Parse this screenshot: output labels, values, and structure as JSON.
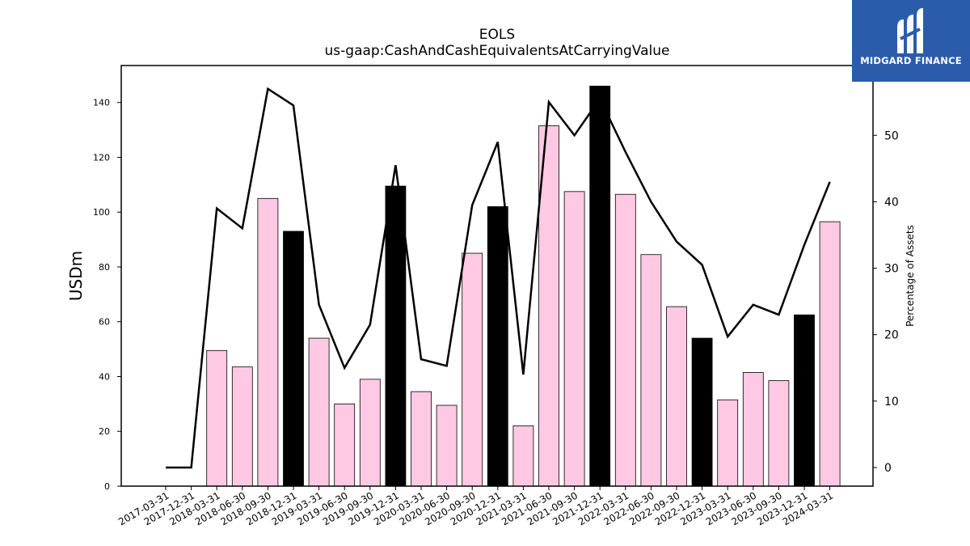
{
  "chart_data": {
    "type": "bar",
    "title": "EOLS",
    "subtitle": "us-gaap:CashAndCashEquivalentsAtCarryingValue",
    "ylabel": "USDm",
    "y2label": "Percentage of Assets",
    "ylim": [
      0,
      153.5
    ],
    "y2lim": [
      -2.8,
      60.5
    ],
    "yticks": [
      0,
      20,
      40,
      60,
      80,
      100,
      120,
      140
    ],
    "y2ticks": [
      0,
      10,
      20,
      30,
      40,
      50
    ],
    "categories": [
      "2017-03-31",
      "2017-12-31",
      "2018-03-31",
      "2018-06-30",
      "2018-09-30",
      "2018-12-31",
      "2019-03-31",
      "2019-06-30",
      "2019-09-30",
      "2019-12-31",
      "2020-03-31",
      "2020-06-30",
      "2020-09-30",
      "2020-12-31",
      "2021-03-31",
      "2021-06-30",
      "2021-09-30",
      "2021-12-31",
      "2022-03-31",
      "2022-06-30",
      "2022-09-30",
      "2022-12-31",
      "2023-03-31",
      "2023-06-30",
      "2023-09-30",
      "2023-12-31",
      "2024-03-31"
    ],
    "series": [
      {
        "type": "bar",
        "values": [
          0,
          0,
          49.5,
          43.5,
          105,
          93,
          54,
          30,
          39,
          109.5,
          34.5,
          29.5,
          85,
          102,
          22,
          131.5,
          107.5,
          146,
          106.5,
          84.5,
          65.5,
          54,
          31.5,
          41.5,
          38.5,
          62.5,
          96.5
        ],
        "colors": [
          "#ffc9e3",
          "#ffc9e3",
          "#ffc9e3",
          "#ffc9e3",
          "#ffc9e3",
          "#000000",
          "#ffc9e3",
          "#ffc9e3",
          "#ffc9e3",
          "#000000",
          "#ffc9e3",
          "#ffc9e3",
          "#ffc9e3",
          "#000000",
          "#ffc9e3",
          "#ffc9e3",
          "#ffc9e3",
          "#000000",
          "#ffc9e3",
          "#ffc9e3",
          "#ffc9e3",
          "#000000",
          "#ffc9e3",
          "#ffc9e3",
          "#ffc9e3",
          "#000000",
          "#ffc9e3"
        ]
      },
      {
        "type": "line",
        "axis": "right",
        "color": "#000000",
        "values": [
          0,
          0,
          39,
          36,
          57,
          54.5,
          24.5,
          15,
          21.5,
          45.5,
          16.3,
          15.3,
          39.5,
          49,
          14,
          55,
          50,
          55.5,
          47.5,
          40,
          34,
          30.5,
          19.7,
          24.5,
          23,
          33.5,
          43
        ]
      }
    ],
    "grid": false,
    "legend": "none"
  },
  "logo": {
    "text": "MIDGARD FINANCE"
  }
}
